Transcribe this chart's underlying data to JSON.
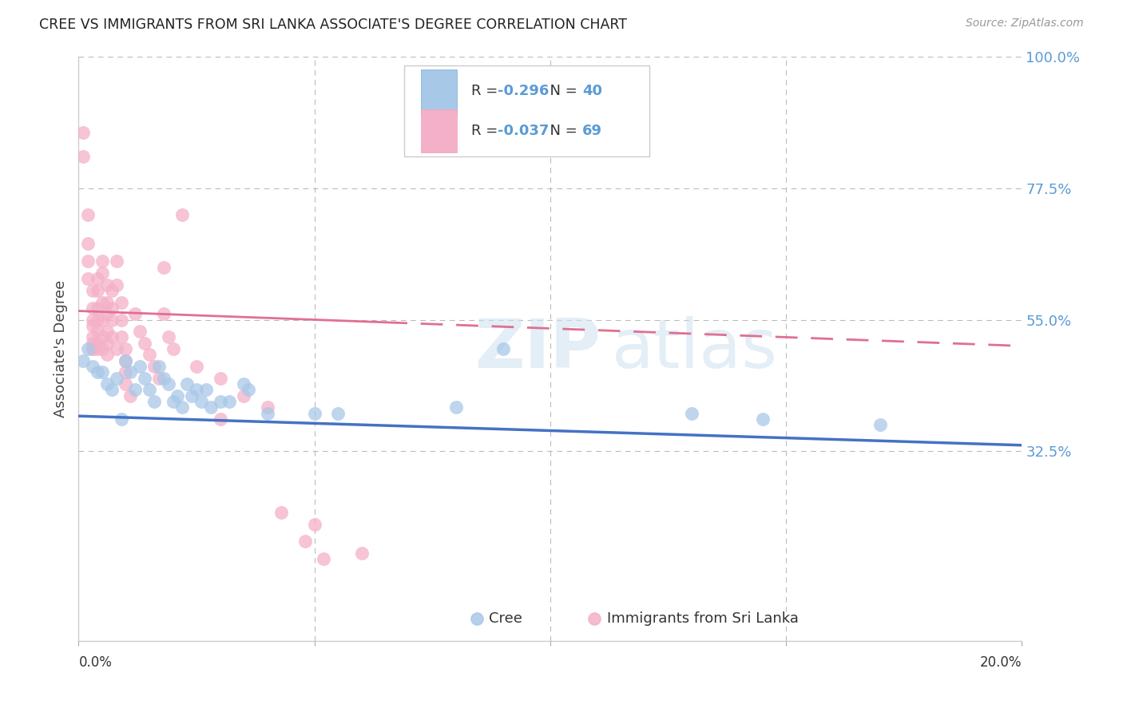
{
  "title": "CREE VS IMMIGRANTS FROM SRI LANKA ASSOCIATE'S DEGREE CORRELATION CHART",
  "source": "Source: ZipAtlas.com",
  "ylabel": "Associate's Degree",
  "right_ytick_labels": [
    "100.0%",
    "77.5%",
    "55.0%",
    "32.5%"
  ],
  "right_ytick_values": [
    1.0,
    0.775,
    0.55,
    0.325
  ],
  "xlim": [
    0.0,
    0.2
  ],
  "ylim": [
    0.0,
    1.0
  ],
  "watermark_zip": "ZIP",
  "watermark_atlas": "atlas",
  "cree_color": "#a8c8e8",
  "srilanka_color": "#f4b0c8",
  "cree_line_color": "#4472c4",
  "srilanka_line_color": "#e07090",
  "background_color": "#ffffff",
  "grid_color": "#bbbbbb",
  "right_label_color": "#5b9bd5",
  "legend_R1": "-0.296",
  "legend_N1": "40",
  "legend_R2": "-0.037",
  "legend_N2": "69",
  "cree_line_y0": 0.385,
  "cree_line_y1": 0.335,
  "srilanka_line_y0": 0.565,
  "srilanka_line_y1": 0.505,
  "cree_points": [
    [
      0.001,
      0.48
    ],
    [
      0.002,
      0.5
    ],
    [
      0.003,
      0.47
    ],
    [
      0.004,
      0.46
    ],
    [
      0.005,
      0.46
    ],
    [
      0.006,
      0.44
    ],
    [
      0.007,
      0.43
    ],
    [
      0.008,
      0.45
    ],
    [
      0.009,
      0.38
    ],
    [
      0.01,
      0.48
    ],
    [
      0.011,
      0.46
    ],
    [
      0.012,
      0.43
    ],
    [
      0.013,
      0.47
    ],
    [
      0.014,
      0.45
    ],
    [
      0.015,
      0.43
    ],
    [
      0.016,
      0.41
    ],
    [
      0.017,
      0.47
    ],
    [
      0.018,
      0.45
    ],
    [
      0.019,
      0.44
    ],
    [
      0.02,
      0.41
    ],
    [
      0.021,
      0.42
    ],
    [
      0.022,
      0.4
    ],
    [
      0.023,
      0.44
    ],
    [
      0.024,
      0.42
    ],
    [
      0.025,
      0.43
    ],
    [
      0.026,
      0.41
    ],
    [
      0.027,
      0.43
    ],
    [
      0.028,
      0.4
    ],
    [
      0.03,
      0.41
    ],
    [
      0.032,
      0.41
    ],
    [
      0.035,
      0.44
    ],
    [
      0.036,
      0.43
    ],
    [
      0.04,
      0.39
    ],
    [
      0.05,
      0.39
    ],
    [
      0.055,
      0.39
    ],
    [
      0.08,
      0.4
    ],
    [
      0.09,
      0.5
    ],
    [
      0.13,
      0.39
    ],
    [
      0.145,
      0.38
    ],
    [
      0.17,
      0.37
    ]
  ],
  "srilanka_points": [
    [
      0.001,
      0.87
    ],
    [
      0.001,
      0.83
    ],
    [
      0.002,
      0.73
    ],
    [
      0.002,
      0.68
    ],
    [
      0.002,
      0.65
    ],
    [
      0.002,
      0.62
    ],
    [
      0.003,
      0.6
    ],
    [
      0.003,
      0.57
    ],
    [
      0.003,
      0.55
    ],
    [
      0.003,
      0.54
    ],
    [
      0.003,
      0.52
    ],
    [
      0.003,
      0.51
    ],
    [
      0.003,
      0.5
    ],
    [
      0.003,
      0.5
    ],
    [
      0.004,
      0.6
    ],
    [
      0.004,
      0.57
    ],
    [
      0.004,
      0.55
    ],
    [
      0.004,
      0.53
    ],
    [
      0.004,
      0.51
    ],
    [
      0.004,
      0.5
    ],
    [
      0.004,
      0.62
    ],
    [
      0.005,
      0.58
    ],
    [
      0.005,
      0.55
    ],
    [
      0.005,
      0.52
    ],
    [
      0.005,
      0.5
    ],
    [
      0.005,
      0.65
    ],
    [
      0.005,
      0.63
    ],
    [
      0.006,
      0.61
    ],
    [
      0.006,
      0.58
    ],
    [
      0.006,
      0.56
    ],
    [
      0.006,
      0.53
    ],
    [
      0.006,
      0.51
    ],
    [
      0.006,
      0.49
    ],
    [
      0.007,
      0.6
    ],
    [
      0.007,
      0.57
    ],
    [
      0.007,
      0.55
    ],
    [
      0.007,
      0.52
    ],
    [
      0.008,
      0.5
    ],
    [
      0.008,
      0.65
    ],
    [
      0.008,
      0.61
    ],
    [
      0.009,
      0.58
    ],
    [
      0.009,
      0.55
    ],
    [
      0.009,
      0.52
    ],
    [
      0.01,
      0.5
    ],
    [
      0.01,
      0.48
    ],
    [
      0.01,
      0.46
    ],
    [
      0.01,
      0.44
    ],
    [
      0.011,
      0.42
    ],
    [
      0.012,
      0.56
    ],
    [
      0.013,
      0.53
    ],
    [
      0.014,
      0.51
    ],
    [
      0.015,
      0.49
    ],
    [
      0.016,
      0.47
    ],
    [
      0.017,
      0.45
    ],
    [
      0.018,
      0.64
    ],
    [
      0.018,
      0.56
    ],
    [
      0.019,
      0.52
    ],
    [
      0.02,
      0.5
    ],
    [
      0.022,
      0.73
    ],
    [
      0.025,
      0.47
    ],
    [
      0.03,
      0.45
    ],
    [
      0.03,
      0.38
    ],
    [
      0.035,
      0.42
    ],
    [
      0.04,
      0.4
    ],
    [
      0.043,
      0.22
    ],
    [
      0.048,
      0.17
    ],
    [
      0.05,
      0.2
    ],
    [
      0.052,
      0.14
    ],
    [
      0.06,
      0.15
    ]
  ]
}
